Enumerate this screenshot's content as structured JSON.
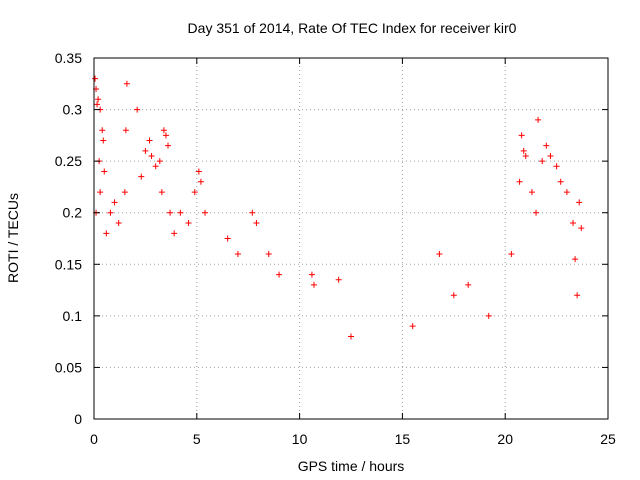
{
  "chart_data": {
    "type": "scatter",
    "title": "Day 351 of 2014, Rate Of TEC Index for receiver kir0",
    "xlabel": "GPS time / hours",
    "ylabel": "ROTI / TECUs",
    "xlim": [
      0,
      25
    ],
    "ylim": [
      0,
      0.35
    ],
    "x_ticks": [
      0,
      5,
      10,
      15,
      20,
      25
    ],
    "y_ticks": [
      0,
      0.05,
      0.1,
      0.15,
      0.2,
      0.25,
      0.3,
      0.35
    ],
    "x_tick_labels": [
      "0",
      "5",
      "10",
      "15",
      "20",
      "25"
    ],
    "y_tick_labels": [
      "0",
      "0.05",
      "0.1",
      "0.15",
      "0.2",
      "0.25",
      "0.3",
      "0.35"
    ],
    "grid": true,
    "marker": "plus",
    "color": "#ff0000",
    "series": [
      {
        "points": [
          [
            0.05,
            0.33
          ],
          [
            0.1,
            0.32
          ],
          [
            0.15,
            0.305
          ],
          [
            0.2,
            0.31
          ],
          [
            0.3,
            0.3
          ],
          [
            0.25,
            0.25
          ],
          [
            0.4,
            0.28
          ],
          [
            0.45,
            0.27
          ],
          [
            0.1,
            0.2
          ],
          [
            0.3,
            0.22
          ],
          [
            0.5,
            0.24
          ],
          [
            0.6,
            0.18
          ],
          [
            0.8,
            0.2
          ],
          [
            1.0,
            0.21
          ],
          [
            1.2,
            0.19
          ],
          [
            1.5,
            0.22
          ],
          [
            1.6,
            0.325
          ],
          [
            1.55,
            0.28
          ],
          [
            2.1,
            0.3
          ],
          [
            2.3,
            0.235
          ],
          [
            2.5,
            0.26
          ],
          [
            2.7,
            0.27
          ],
          [
            2.8,
            0.255
          ],
          [
            3.0,
            0.245
          ],
          [
            3.2,
            0.25
          ],
          [
            3.4,
            0.28
          ],
          [
            3.5,
            0.275
          ],
          [
            3.6,
            0.265
          ],
          [
            3.3,
            0.22
          ],
          [
            3.7,
            0.2
          ],
          [
            3.9,
            0.18
          ],
          [
            4.2,
            0.2
          ],
          [
            4.6,
            0.19
          ],
          [
            4.9,
            0.22
          ],
          [
            5.1,
            0.24
          ],
          [
            5.2,
            0.23
          ],
          [
            5.4,
            0.2
          ],
          [
            6.5,
            0.175
          ],
          [
            7.0,
            0.16
          ],
          [
            7.7,
            0.2
          ],
          [
            7.9,
            0.19
          ],
          [
            8.5,
            0.16
          ],
          [
            9.0,
            0.14
          ],
          [
            10.6,
            0.14
          ],
          [
            10.7,
            0.13
          ],
          [
            11.9,
            0.135
          ],
          [
            12.5,
            0.08
          ],
          [
            15.5,
            0.09
          ],
          [
            16.8,
            0.16
          ],
          [
            17.5,
            0.12
          ],
          [
            18.2,
            0.13
          ],
          [
            19.2,
            0.1
          ],
          [
            20.3,
            0.16
          ],
          [
            20.7,
            0.23
          ],
          [
            20.8,
            0.275
          ],
          [
            20.9,
            0.26
          ],
          [
            21.0,
            0.255
          ],
          [
            21.3,
            0.22
          ],
          [
            21.5,
            0.2
          ],
          [
            21.6,
            0.29
          ],
          [
            21.8,
            0.25
          ],
          [
            22.0,
            0.265
          ],
          [
            22.2,
            0.255
          ],
          [
            22.5,
            0.245
          ],
          [
            22.7,
            0.23
          ],
          [
            23.0,
            0.22
          ],
          [
            23.3,
            0.19
          ],
          [
            23.6,
            0.21
          ],
          [
            23.7,
            0.185
          ],
          [
            23.4,
            0.155
          ],
          [
            23.5,
            0.12
          ]
        ]
      }
    ]
  }
}
